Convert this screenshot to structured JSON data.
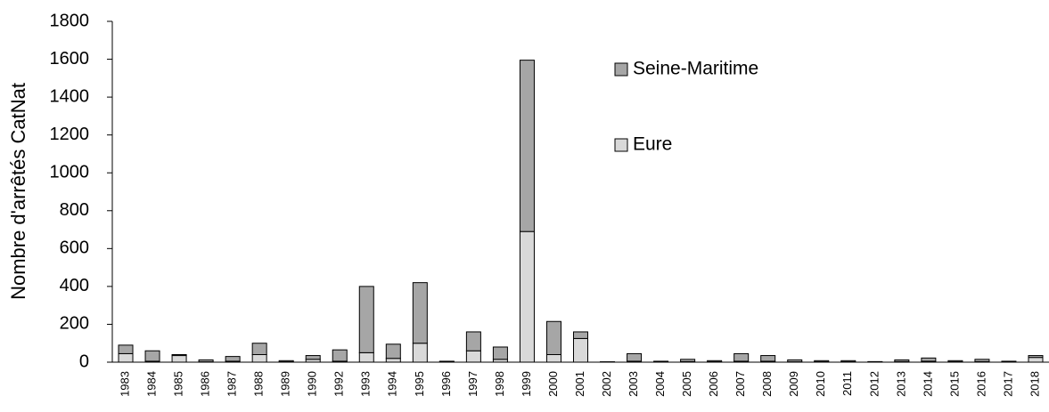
{
  "chart_data": {
    "type": "stacked_bar",
    "y_label": "Nombre d'arrêtés CatNat",
    "categories": [
      "1983",
      "1984",
      "1985",
      "1986",
      "1987",
      "1988",
      "1989",
      "1990",
      "1992",
      "1993",
      "1994",
      "1995",
      "1996",
      "1997",
      "1998",
      "1999",
      "2000",
      "2001",
      "2002",
      "2003",
      "2004",
      "2005",
      "2006",
      "2007",
      "2008",
      "2009",
      "2010",
      "2011",
      "2012",
      "2013",
      "2014",
      "2015",
      "2016",
      "2017",
      "2018"
    ],
    "series": [
      {
        "name": "Eure",
        "color": "#d9d9d9",
        "values": [
          45,
          5,
          35,
          2,
          5,
          40,
          2,
          15,
          5,
          50,
          20,
          100,
          2,
          60,
          15,
          690,
          40,
          125,
          1,
          5,
          1,
          3,
          2,
          5,
          5,
          2,
          2,
          2,
          1,
          3,
          5,
          2,
          3,
          1,
          25
        ]
      },
      {
        "name": "Seine-Maritime",
        "color": "#a6a6a6",
        "values": [
          45,
          55,
          5,
          10,
          25,
          60,
          6,
          20,
          60,
          350,
          75,
          320,
          3,
          100,
          65,
          905,
          175,
          35,
          1,
          40,
          4,
          12,
          6,
          40,
          30,
          10,
          6,
          6,
          2,
          9,
          17,
          6,
          12,
          4,
          10
        ]
      }
    ],
    "ylim": [
      0,
      1800
    ],
    "yticks": [
      0,
      200,
      400,
      600,
      800,
      1000,
      1200,
      1400,
      1600,
      1800
    ]
  }
}
